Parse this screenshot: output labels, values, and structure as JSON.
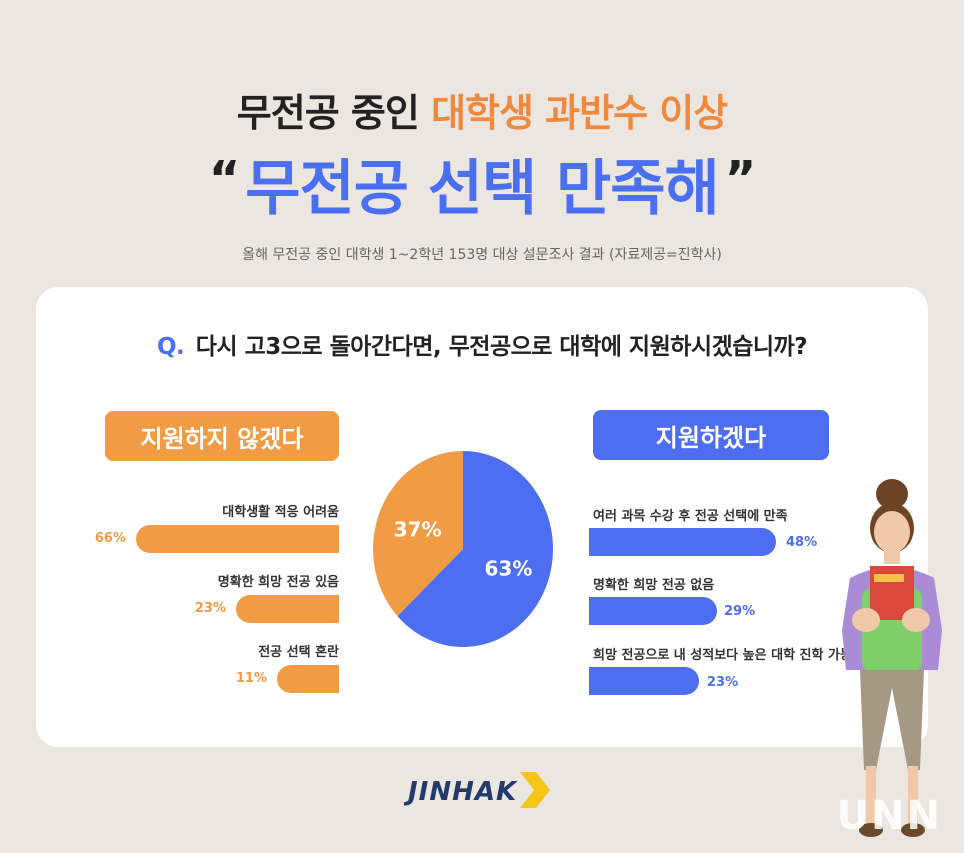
{
  "header": {
    "title_part1": "무전공 중인",
    "title_part2": "대학생 과반수 이상",
    "headline_open_quote": "“",
    "headline": "무전공 선택 만족해",
    "headline_close_quote": "”",
    "subtitle": "올해 무전공 중인 대학생 1~2학년 153명 대상 설문조사 결과 (자료제공=진학사)"
  },
  "question": {
    "prefix": "Q.",
    "text": "다시 고3으로 돌아간다면, 무전공으로 대학에 지원하시겠습니까?"
  },
  "left_group": {
    "label": "지원하지 않겠다",
    "items": [
      {
        "label": "대학생활 적응 어려움",
        "pct_text": "66%",
        "value": 66
      },
      {
        "label": "명확한 희망 전공 있음",
        "pct_text": "23%",
        "value": 23
      },
      {
        "label": "전공 선택 혼란",
        "pct_text": "11%",
        "value": 11
      }
    ]
  },
  "right_group": {
    "label": "지원하겠다",
    "items": [
      {
        "label": "여러 과목 수강 후 전공 선택에 만족",
        "pct_text": "48%",
        "value": 48
      },
      {
        "label": "명확한 희망 전공 없음",
        "pct_text": "29%",
        "value": 29
      },
      {
        "label": "희망 전공으로 내 성적보다 높은 대학 진학 가능",
        "pct_text": "23%",
        "value": 23
      }
    ]
  },
  "chart_data": {
    "type": "pie",
    "slices": [
      {
        "label": "지원하지 않겠다",
        "value": 37,
        "text": "37%",
        "color": "#f19b45"
      },
      {
        "label": "지원하겠다",
        "value": 63,
        "text": "63%",
        "color": "#4d6ef0"
      }
    ]
  },
  "brand": {
    "logo": "JINHAK",
    "watermark": "UNN"
  },
  "colors": {
    "orange": "#f19b45",
    "blue": "#4d6ef0",
    "title_orange": "#f0883e"
  }
}
